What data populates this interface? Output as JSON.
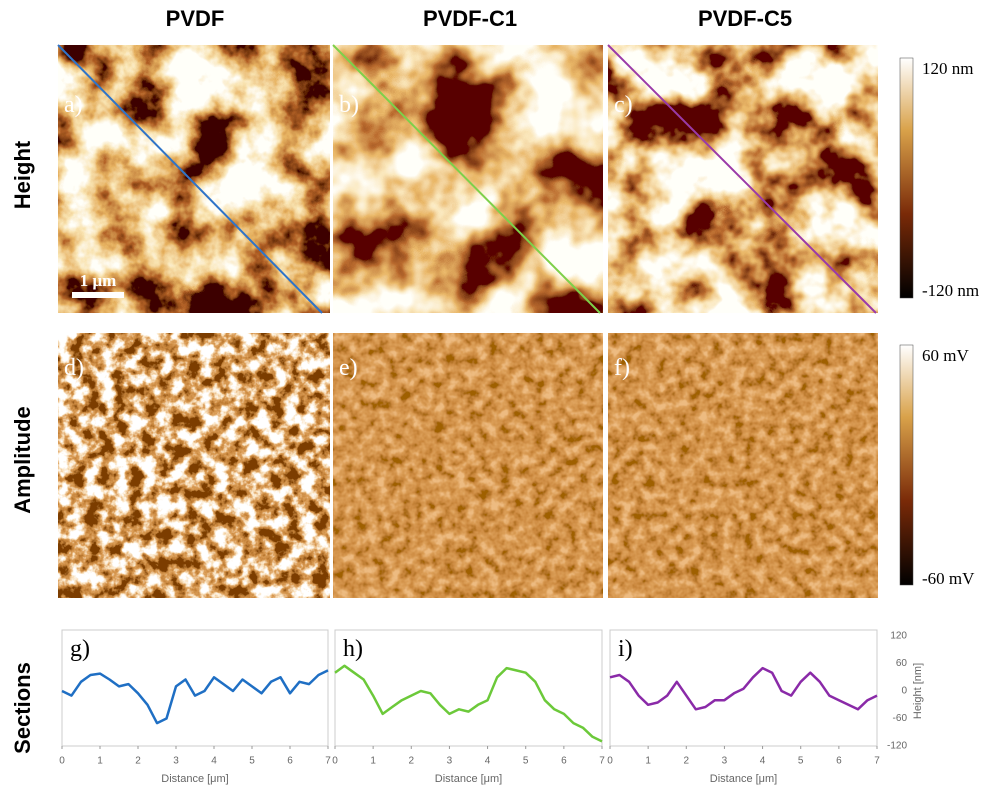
{
  "columns": [
    "PVDF",
    "PVDF-C1",
    "PVDF-C5"
  ],
  "rows": [
    "Height",
    "Amplitude",
    "Sections"
  ],
  "panels": [
    "a)",
    "b)",
    "c)",
    "d)",
    "e)",
    "f)"
  ],
  "scale_bar": "1 μm",
  "height_colorbar": {
    "max": "120 nm",
    "min": "-120 nm"
  },
  "amplitude_colorbar": {
    "max": "60 mV",
    "min": "-60 mV"
  },
  "chart_data": [
    {
      "type": "line",
      "label": "g)",
      "xlabel": "Distance [μm]",
      "color": "#1f6fc4",
      "x": [
        0,
        0.25,
        0.5,
        0.75,
        1,
        1.25,
        1.5,
        1.75,
        2,
        2.25,
        2.5,
        2.75,
        3,
        3.25,
        3.5,
        3.75,
        4,
        4.25,
        4.5,
        4.75,
        5,
        5.25,
        5.5,
        5.75,
        6,
        6.25,
        6.5,
        6.75,
        7
      ],
      "values": [
        0,
        -10,
        20,
        35,
        38,
        25,
        10,
        15,
        -5,
        -30,
        -70,
        -60,
        10,
        25,
        -10,
        0,
        30,
        15,
        0,
        25,
        10,
        -5,
        20,
        30,
        -5,
        20,
        15,
        35,
        45
      ],
      "xlim": [
        0,
        7
      ],
      "xticks": [
        0,
        1,
        2,
        3,
        4,
        5,
        6,
        7
      ],
      "ylim": [
        -120,
        120
      ]
    },
    {
      "type": "line",
      "label": "h)",
      "xlabel": "Distance [μm]",
      "color": "#6cc93a",
      "x": [
        0,
        0.25,
        0.5,
        0.75,
        1,
        1.25,
        1.5,
        1.75,
        2,
        2.25,
        2.5,
        2.75,
        3,
        3.25,
        3.5,
        3.75,
        4,
        4.25,
        4.5,
        4.75,
        5,
        5.25,
        5.5,
        5.75,
        6,
        6.25,
        6.5,
        6.75,
        7
      ],
      "values": [
        40,
        55,
        40,
        25,
        -10,
        -50,
        -35,
        -20,
        -10,
        0,
        -5,
        -30,
        -50,
        -40,
        -45,
        -30,
        -20,
        30,
        50,
        45,
        40,
        20,
        -20,
        -40,
        -50,
        -70,
        -80,
        -100,
        -110
      ],
      "xlim": [
        0,
        7
      ],
      "xticks": [
        0,
        1,
        2,
        3,
        4,
        5,
        6,
        7
      ],
      "ylim": [
        -120,
        120
      ]
    },
    {
      "type": "line",
      "label": "i)",
      "xlabel": "Distance [μm]",
      "ylabel": "Height [nm]",
      "color": "#8a2aa8",
      "x": [
        0,
        0.25,
        0.5,
        0.75,
        1,
        1.25,
        1.5,
        1.75,
        2,
        2.25,
        2.5,
        2.75,
        3,
        3.25,
        3.5,
        3.75,
        4,
        4.25,
        4.5,
        4.75,
        5,
        5.25,
        5.5,
        5.75,
        6,
        6.25,
        6.5,
        6.75,
        7
      ],
      "values": [
        30,
        35,
        20,
        -10,
        -30,
        -25,
        -10,
        20,
        -10,
        -40,
        -35,
        -20,
        -20,
        -5,
        5,
        30,
        50,
        40,
        0,
        -10,
        20,
        40,
        20,
        -10,
        -20,
        -30,
        -40,
        -20,
        -10
      ],
      "xlim": [
        0,
        7
      ],
      "xticks": [
        0,
        1,
        2,
        3,
        4,
        5,
        6,
        7
      ],
      "ylim": [
        -120,
        120
      ],
      "yticks": [
        -120,
        -60,
        0,
        60,
        120
      ]
    }
  ]
}
